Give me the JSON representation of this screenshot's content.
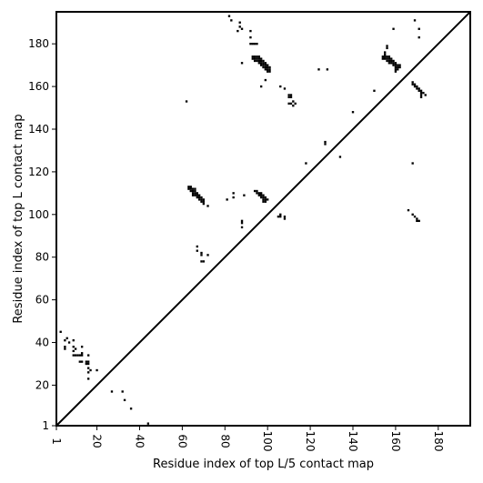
{
  "chart_data": {
    "type": "scatter",
    "title": "",
    "xlabel": "Residue index of top L/5 contact map",
    "ylabel": "Residue index of top L contact map",
    "xlim": [
      1,
      195
    ],
    "ylim": [
      1,
      195
    ],
    "xticks": [
      1,
      20,
      40,
      60,
      80,
      100,
      120,
      140,
      160,
      180
    ],
    "yticks": [
      1,
      20,
      40,
      60,
      80,
      100,
      120,
      140,
      160,
      180
    ],
    "grid": false,
    "marker_color": "#000000",
    "diagonal": {
      "from": [
        1,
        1
      ],
      "to": [
        195,
        195
      ]
    },
    "series": [
      {
        "region": "upper-left",
        "points": [
          [
            82,
            193
          ],
          [
            83,
            191
          ],
          [
            87,
            190
          ],
          [
            87,
            188
          ],
          [
            88,
            187
          ],
          [
            86,
            186
          ],
          [
            92,
            186
          ],
          [
            92,
            183
          ],
          [
            92,
            180
          ],
          [
            93,
            180
          ],
          [
            94,
            180
          ],
          [
            95,
            180
          ],
          [
            93,
            174
          ],
          [
            94,
            174
          ],
          [
            95,
            174
          ],
          [
            96,
            174
          ],
          [
            93,
            173
          ],
          [
            94,
            173
          ],
          [
            95,
            173
          ],
          [
            96,
            173
          ],
          [
            97,
            173
          ],
          [
            94,
            172
          ],
          [
            95,
            172
          ],
          [
            96,
            172
          ],
          [
            97,
            172
          ],
          [
            98,
            172
          ],
          [
            96,
            171
          ],
          [
            97,
            171
          ],
          [
            98,
            171
          ],
          [
            99,
            171
          ],
          [
            88,
            171
          ],
          [
            97,
            170
          ],
          [
            98,
            170
          ],
          [
            99,
            170
          ],
          [
            100,
            170
          ],
          [
            98,
            169
          ],
          [
            99,
            169
          ],
          [
            100,
            169
          ],
          [
            101,
            169
          ],
          [
            99,
            168
          ],
          [
            100,
            168
          ],
          [
            101,
            168
          ],
          [
            100,
            167
          ],
          [
            101,
            167
          ],
          [
            99,
            163
          ],
          [
            97,
            160
          ],
          [
            106,
            160
          ],
          [
            108,
            159
          ],
          [
            110,
            156
          ],
          [
            111,
            156
          ],
          [
            110,
            155
          ],
          [
            111,
            155
          ],
          [
            112,
            153
          ],
          [
            110,
            152
          ],
          [
            111,
            152
          ],
          [
            113,
            152
          ],
          [
            112,
            151
          ],
          [
            62,
            153
          ],
          [
            124,
            168
          ],
          [
            128,
            168
          ],
          [
            127,
            134
          ],
          [
            127,
            133
          ],
          [
            118,
            124
          ],
          [
            134,
            127
          ],
          [
            63,
            113
          ],
          [
            64,
            113
          ],
          [
            63,
            112
          ],
          [
            64,
            112
          ],
          [
            65,
            112
          ],
          [
            66,
            112
          ],
          [
            64,
            111
          ],
          [
            65,
            111
          ],
          [
            66,
            111
          ],
          [
            65,
            110
          ],
          [
            66,
            110
          ],
          [
            67,
            110
          ],
          [
            65,
            109
          ],
          [
            66,
            109
          ],
          [
            67,
            109
          ],
          [
            68,
            109
          ],
          [
            67,
            108
          ],
          [
            68,
            108
          ],
          [
            69,
            108
          ],
          [
            68,
            107
          ],
          [
            69,
            107
          ],
          [
            70,
            107
          ],
          [
            69,
            106
          ],
          [
            70,
            106
          ],
          [
            70,
            105
          ],
          [
            72,
            104
          ],
          [
            94,
            111
          ],
          [
            95,
            111
          ],
          [
            95,
            110
          ],
          [
            96,
            110
          ],
          [
            97,
            110
          ],
          [
            96,
            109
          ],
          [
            97,
            109
          ],
          [
            98,
            109
          ],
          [
            97,
            108
          ],
          [
            98,
            108
          ],
          [
            99,
            108
          ],
          [
            98,
            107
          ],
          [
            99,
            107
          ],
          [
            100,
            107
          ],
          [
            98,
            106
          ],
          [
            99,
            106
          ],
          [
            84,
            110
          ],
          [
            84,
            108
          ],
          [
            89,
            109
          ],
          [
            81,
            107
          ],
          [
            106,
            100
          ],
          [
            105,
            99
          ],
          [
            106,
            99
          ],
          [
            108,
            99
          ],
          [
            108,
            98
          ],
          [
            88,
            97
          ],
          [
            88,
            96
          ],
          [
            88,
            94
          ],
          [
            67,
            85
          ],
          [
            67,
            83
          ],
          [
            69,
            82
          ],
          [
            72,
            81
          ],
          [
            69,
            81
          ],
          [
            69,
            78
          ],
          [
            70,
            78
          ]
        ]
      },
      {
        "region": "lower-right",
        "points": [
          [
            156,
            179
          ],
          [
            156,
            178
          ],
          [
            155,
            176
          ],
          [
            155,
            175
          ],
          [
            154,
            174
          ],
          [
            155,
            174
          ],
          [
            156,
            174
          ],
          [
            157,
            174
          ],
          [
            154,
            173
          ],
          [
            155,
            173
          ],
          [
            156,
            173
          ],
          [
            157,
            173
          ],
          [
            158,
            173
          ],
          [
            156,
            172
          ],
          [
            157,
            172
          ],
          [
            158,
            172
          ],
          [
            159,
            172
          ],
          [
            157,
            171
          ],
          [
            158,
            171
          ],
          [
            159,
            171
          ],
          [
            160,
            171
          ],
          [
            159,
            170
          ],
          [
            160,
            170
          ],
          [
            161,
            170
          ],
          [
            162,
            170
          ],
          [
            160,
            169
          ],
          [
            161,
            169
          ],
          [
            162,
            169
          ],
          [
            160,
            168
          ],
          [
            161,
            168
          ],
          [
            160,
            167
          ],
          [
            150,
            158
          ],
          [
            159,
            187
          ],
          [
            169,
            191
          ],
          [
            171,
            187
          ],
          [
            171,
            183
          ],
          [
            168,
            162
          ],
          [
            168,
            161
          ],
          [
            169,
            161
          ],
          [
            169,
            160
          ],
          [
            170,
            160
          ],
          [
            170,
            159
          ],
          [
            171,
            159
          ],
          [
            171,
            158
          ],
          [
            172,
            158
          ],
          [
            172,
            157
          ],
          [
            173,
            157
          ],
          [
            172,
            156
          ],
          [
            174,
            156
          ],
          [
            172,
            155
          ],
          [
            168,
            124
          ],
          [
            166,
            102
          ],
          [
            168,
            100
          ],
          [
            169,
            99
          ],
          [
            170,
            98
          ],
          [
            170,
            97
          ],
          [
            171,
            97
          ],
          [
            140,
            148
          ],
          [
            3,
            45
          ],
          [
            6,
            42
          ],
          [
            5,
            41
          ],
          [
            7,
            40
          ],
          [
            9,
            41
          ],
          [
            5,
            38
          ],
          [
            5,
            37
          ],
          [
            9,
            38
          ],
          [
            10,
            37
          ],
          [
            13,
            38
          ],
          [
            9,
            36
          ],
          [
            16,
            34
          ],
          [
            9,
            34
          ],
          [
            10,
            34
          ],
          [
            11,
            34
          ],
          [
            12,
            34
          ],
          [
            13,
            34
          ],
          [
            13,
            35
          ],
          [
            12,
            31
          ],
          [
            13,
            31
          ],
          [
            15,
            31
          ],
          [
            16,
            31
          ],
          [
            15,
            30
          ],
          [
            16,
            30
          ],
          [
            16,
            28
          ],
          [
            17,
            27
          ],
          [
            20,
            27
          ],
          [
            16,
            26
          ],
          [
            16,
            23
          ],
          [
            27,
            17
          ],
          [
            32,
            17
          ],
          [
            33,
            13
          ],
          [
            36,
            9
          ],
          [
            44,
            2
          ]
        ]
      }
    ]
  }
}
